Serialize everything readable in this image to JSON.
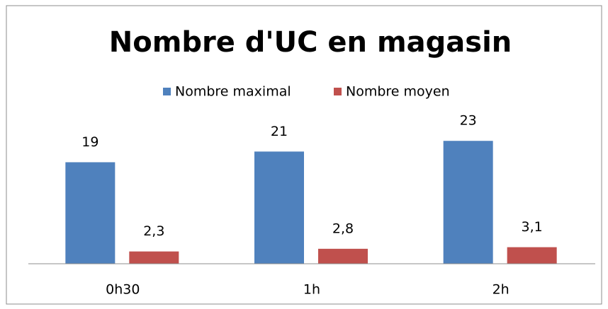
{
  "chart_data": {
    "type": "bar",
    "title": "Nombre d'UC en magasin",
    "categories": [
      "0h30",
      "1h",
      "2h"
    ],
    "series": [
      {
        "name": "Nombre maximal",
        "color": "#4f81bd",
        "values": [
          19,
          21,
          23
        ]
      },
      {
        "name": "Nombre moyen",
        "color": "#c0504d",
        "values": [
          2.3,
          2.8,
          3.1
        ],
        "value_labels": [
          "2,3",
          "2,8",
          "3,1"
        ]
      }
    ],
    "ylim": [
      0,
      27
    ],
    "legend": "top"
  }
}
